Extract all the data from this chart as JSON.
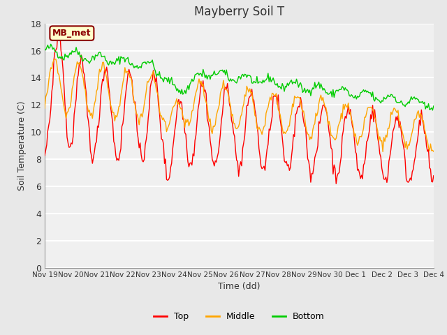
{
  "title": "Mayberry Soil T",
  "xlabel": "Time (dd)",
  "ylabel": "Soil Temperature (C)",
  "ylim": [
    0,
    18
  ],
  "yticks": [
    0,
    2,
    4,
    6,
    8,
    10,
    12,
    14,
    16,
    18
  ],
  "x_labels": [
    "Nov 19",
    "Nov 20",
    "Nov 21",
    "Nov 22",
    "Nov 23",
    "Nov 24",
    "Nov 25",
    "Nov 26",
    "Nov 27",
    "Nov 28",
    "Nov 29",
    "Nov 30",
    "Dec 1",
    "Dec 2",
    "Dec 3",
    "Dec 4"
  ],
  "annotation_text": "MB_met",
  "annotation_color": "#8B0000",
  "annotation_bg": "#FFFFCC",
  "annotation_border": "#8B0000",
  "top_color": "#FF0000",
  "middle_color": "#FFA500",
  "bottom_color": "#00CC00",
  "bg_color": "#E8E8E8",
  "plot_bg": "#F0F0F0",
  "grid_color": "#FFFFFF",
  "title_color": "#333333",
  "label_color": "#333333"
}
